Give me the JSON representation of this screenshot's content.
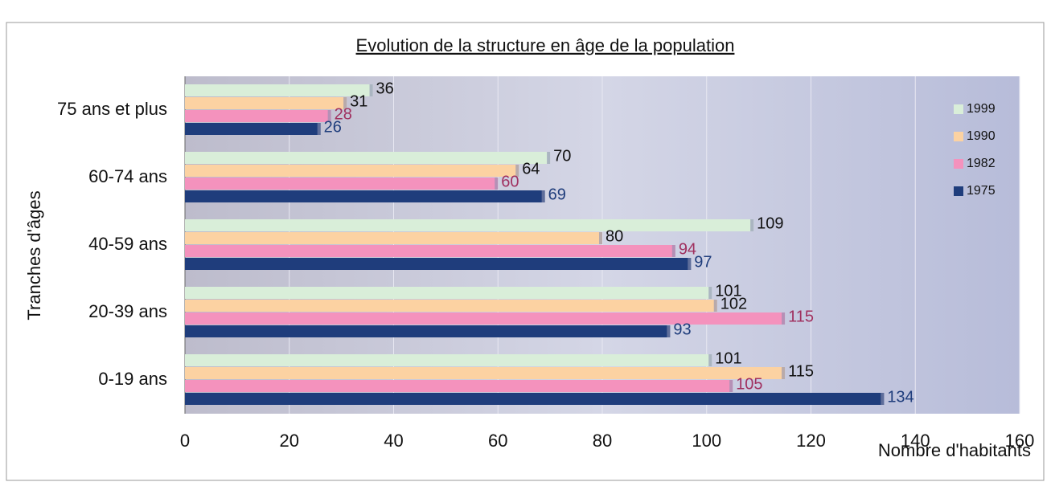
{
  "chart_data": {
    "type": "hbar",
    "title": "Evolution de la structure en âge de la population",
    "x_label": "Nombre d'habitants",
    "y_label": "Tranches d'âges",
    "categories": [
      "75 ans et plus",
      "60-74 ans",
      "40-59 ans",
      "20-39 ans",
      "0-19 ans"
    ],
    "series": [
      {
        "name": "1999",
        "color": "#d9eed9",
        "label_color": "#111111",
        "values": [
          36,
          70,
          109,
          101,
          101
        ]
      },
      {
        "name": "1990",
        "color": "#fcd2a2",
        "label_color": "#111111",
        "values": [
          31,
          64,
          80,
          102,
          115
        ]
      },
      {
        "name": "1982",
        "color": "#f492bd",
        "label_color": "#a0305f",
        "values": [
          28,
          60,
          94,
          115,
          105
        ]
      },
      {
        "name": "1975",
        "color": "#1f3d7c",
        "label_color": "#1f3d7c",
        "values": [
          26,
          69,
          97,
          93,
          134
        ]
      }
    ],
    "xlim": [
      0,
      160
    ],
    "xticks": [
      0,
      20,
      40,
      60,
      80,
      100,
      120,
      140,
      160
    ],
    "grid": true,
    "legend": "right"
  }
}
